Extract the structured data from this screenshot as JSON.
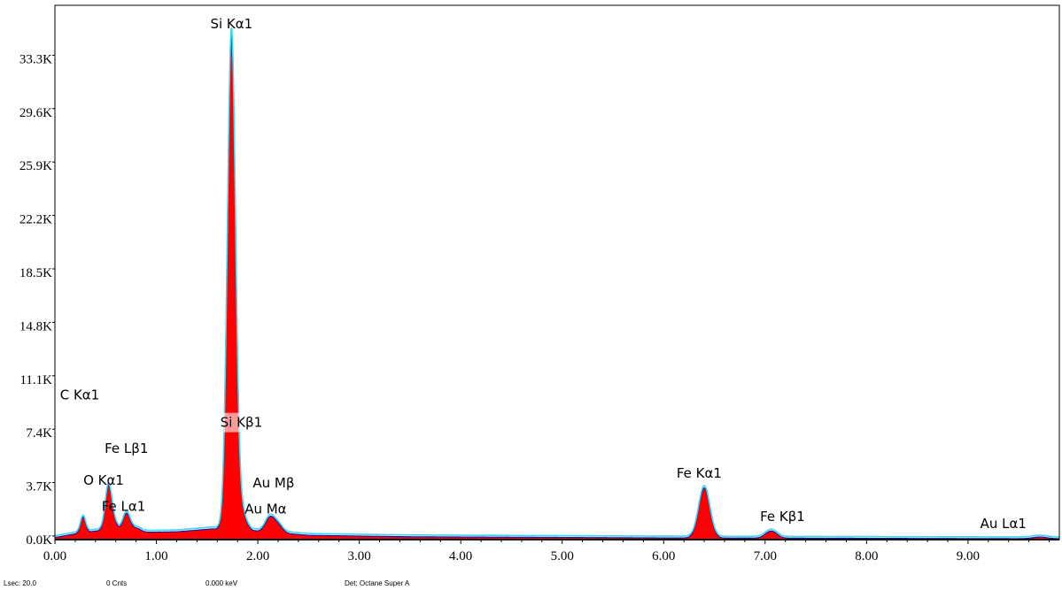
{
  "chart_data": {
    "type": "area",
    "title": "",
    "xlabel": "",
    "ylabel": "",
    "xlim": [
      0,
      9.9
    ],
    "ylim": [
      0,
      37000
    ],
    "grid": false,
    "x_ticks": [
      {
        "value": 0,
        "label": "0.00"
      },
      {
        "value": 1,
        "label": "1.00"
      },
      {
        "value": 2,
        "label": "2.00"
      },
      {
        "value": 3,
        "label": "3.00"
      },
      {
        "value": 4,
        "label": "4.00"
      },
      {
        "value": 5,
        "label": "5.00"
      },
      {
        "value": 6,
        "label": "6.00"
      },
      {
        "value": 7,
        "label": "7.00"
      },
      {
        "value": 8,
        "label": "8.00"
      },
      {
        "value": 9,
        "label": "9.00"
      }
    ],
    "y_ticks": [
      {
        "value": 0,
        "label": "0.0K"
      },
      {
        "value": 3700,
        "label": "3.7K"
      },
      {
        "value": 7400,
        "label": "7.4K"
      },
      {
        "value": 11100,
        "label": "11.1K"
      },
      {
        "value": 14800,
        "label": "14.8K"
      },
      {
        "value": 18500,
        "label": "18.5K"
      },
      {
        "value": 22200,
        "label": "22.2K"
      },
      {
        "value": 25900,
        "label": "25.9K"
      },
      {
        "value": 29600,
        "label": "29.6K"
      },
      {
        "value": 33300,
        "label": "33.3K"
      }
    ],
    "colors": {
      "fill": "#ff0000",
      "outline": "#3fd6f0",
      "fit": "#1a1aa8",
      "axis": "#000000"
    },
    "peaks": [
      {
        "energy": 0.277,
        "height": 1100,
        "width": 0.025
      },
      {
        "energy": 0.525,
        "height": 2200,
        "width": 0.03
      },
      {
        "energy": 0.55,
        "height": 1200,
        "width": 0.045
      },
      {
        "energy": 0.705,
        "height": 1300,
        "width": 0.035
      },
      {
        "energy": 0.8,
        "height": 300,
        "width": 0.045
      },
      {
        "energy": 1.74,
        "height": 34500,
        "width": 0.04
      },
      {
        "energy": 1.835,
        "height": 1300,
        "width": 0.045
      },
      {
        "energy": 2.12,
        "height": 1000,
        "width": 0.045
      },
      {
        "energy": 2.2,
        "height": 500,
        "width": 0.045
      },
      {
        "energy": 6.4,
        "height": 3500,
        "width": 0.055
      },
      {
        "energy": 7.06,
        "height": 500,
        "width": 0.055
      },
      {
        "energy": 9.71,
        "height": 120,
        "width": 0.07
      }
    ],
    "background": [
      {
        "energy": 0.0,
        "counts": 150
      },
      {
        "energy": 0.2,
        "counts": 400
      },
      {
        "energy": 0.4,
        "counts": 600
      },
      {
        "energy": 0.8,
        "counts": 500
      },
      {
        "energy": 1.2,
        "counts": 550
      },
      {
        "energy": 1.55,
        "counts": 750
      },
      {
        "energy": 1.9,
        "counts": 650
      },
      {
        "energy": 2.5,
        "counts": 300
      },
      {
        "energy": 3.5,
        "counts": 200
      },
      {
        "energy": 6.0,
        "counts": 120
      },
      {
        "energy": 9.9,
        "counts": 60
      }
    ],
    "annotations": [
      {
        "text": "Si Kα1",
        "energy": 1.74,
        "counts": 35400,
        "anchor": "middle",
        "highlight": false
      },
      {
        "text": "C  Kα1",
        "energy": 0.05,
        "counts": 9700,
        "anchor": "start",
        "highlight": false
      },
      {
        "text": "Fe Lβ1",
        "energy": 0.49,
        "counts": 6000,
        "anchor": "start",
        "highlight": false
      },
      {
        "text": "Si Kβ1",
        "energy": 1.63,
        "counts": 7800,
        "anchor": "start",
        "highlight": true
      },
      {
        "text": "O  Kα1",
        "energy": 0.28,
        "counts": 3800,
        "anchor": "start",
        "highlight": false
      },
      {
        "text": "Au Mβ",
        "energy": 1.95,
        "counts": 3600,
        "anchor": "start",
        "highlight": false
      },
      {
        "text": "Fe Lα1",
        "energy": 0.46,
        "counts": 2000,
        "anchor": "start",
        "highlight": false
      },
      {
        "text": "Au Mα",
        "energy": 1.87,
        "counts": 1800,
        "anchor": "start",
        "highlight": false
      },
      {
        "text": "Fe Kα1",
        "energy": 6.35,
        "counts": 4300,
        "anchor": "middle",
        "highlight": false
      },
      {
        "text": "Fe Kβ1",
        "energy": 6.95,
        "counts": 1300,
        "anchor": "start",
        "highlight": false
      },
      {
        "text": "Au Lα1",
        "energy": 9.12,
        "counts": 800,
        "anchor": "start",
        "highlight": false
      }
    ]
  },
  "status": {
    "lsec": "Lsec: 20.0",
    "cnts": "0 Cnts",
    "kev": "0.000 keV",
    "det": "Det: Octane Super A"
  }
}
